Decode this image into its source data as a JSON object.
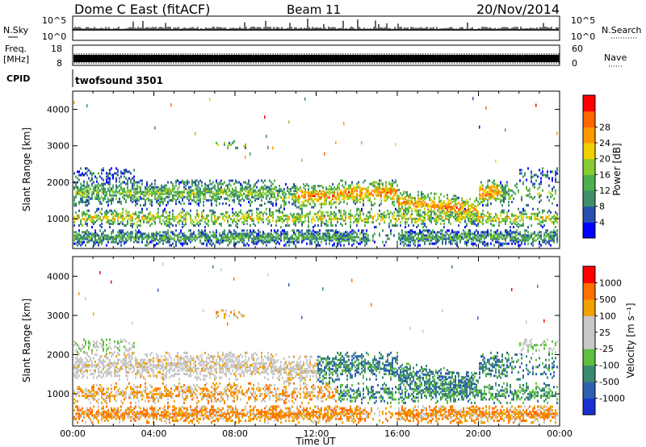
{
  "header": {
    "title": "Dome C East (fitACF)",
    "beam": "Beam 11",
    "date": "20/Nov/2014"
  },
  "strip_panels": {
    "nsky_label": "N.Sky",
    "nsky_ticks": [
      "10^5",
      "10^0"
    ],
    "nsearch_label": "N.Search",
    "freq_label": "Freq.",
    "freq_unit": "[MHz]",
    "freq_ticks": [
      "18",
      "8"
    ],
    "nave_label": "Nave",
    "nave_ticks": [
      "60",
      "0"
    ],
    "cpid_label": "CPID",
    "cpid_value": "twofsound 3501"
  },
  "colors": {
    "power_scale": [
      "#0000ff",
      "#2b4fb0",
      "#3f8f6a",
      "#4fae4f",
      "#88cc33",
      "#f0d000",
      "#ff9900",
      "#ff6600",
      "#ff0000"
    ],
    "velocity_scale": [
      "#1a2fd0",
      "#2f5fb0",
      "#3a8a70",
      "#5fbf3f",
      "#c8c8c8",
      "#c8c8c8",
      "#f0a000",
      "#ff7000",
      "#ff0000"
    ]
  },
  "chart_data": [
    {
      "type": "heatmap",
      "name": "power",
      "ylabel": "Slant Range [km]",
      "xlabel": "",
      "ylim": [
        180,
        4500
      ],
      "yticks": [
        "1000",
        "2000",
        "3000",
        "4000"
      ],
      "colorbar_label": "Power [dB]",
      "colorbar_ticks": [
        "4",
        "8",
        "12",
        "16",
        "20",
        "24",
        "28"
      ],
      "x": [
        "00:00",
        "04:00",
        "08:00",
        "12:00",
        "16:00",
        "20:00",
        "00:00"
      ]
    },
    {
      "type": "heatmap",
      "name": "velocity",
      "ylabel": "Slant Range [km]",
      "xlabel": "Time UT",
      "ylim": [
        180,
        4500
      ],
      "yticks": [
        "1000",
        "2000",
        "3000",
        "4000"
      ],
      "colorbar_label": "Velocity [m s⁻¹]",
      "colorbar_ticks": [
        "1000",
        "500",
        "100",
        "25",
        "-25",
        "-100",
        "-500",
        "-1000"
      ],
      "x": [
        "00:00",
        "04:00",
        "08:00",
        "12:00",
        "16:00",
        "20:00",
        "00:00"
      ]
    }
  ]
}
